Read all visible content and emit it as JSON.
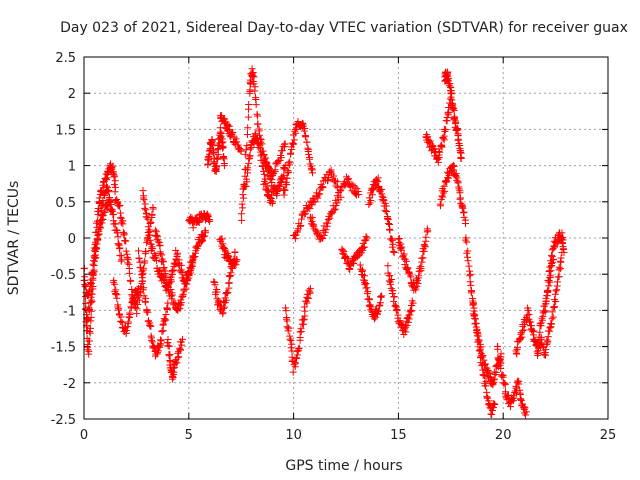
{
  "chart_data": {
    "type": "scatter",
    "title": "Day 023 of 2021, Sidereal Day-to-day VTEC variation (SDTVAR) for receiver guax",
    "xlabel": "GPS time / hours",
    "ylabel": "SDTVAR / TECUs",
    "xlim": [
      0,
      25
    ],
    "ylim": [
      -2.5,
      2.5
    ],
    "x_ticks": [
      0,
      5,
      10,
      15,
      20,
      25
    ],
    "x_tick_labels": [
      "0",
      "5",
      "10",
      "15",
      "20",
      "25"
    ],
    "y_ticks": [
      -2.5,
      -2,
      -1.5,
      -1,
      -0.5,
      0,
      0.5,
      1,
      1.5,
      2,
      2.5
    ],
    "y_tick_labels": [
      "-2.5",
      "-2",
      "-1.5",
      "-1",
      "-0.5",
      "0",
      "0.5",
      "1",
      "1.5",
      "2",
      "2.5"
    ],
    "grid": true,
    "marker": "+",
    "series": [
      {
        "name": "SDTVAR",
        "color": "#ff0000",
        "tracks": [
          {
            "x": [
              0.0,
              0.1,
              0.2,
              0.35,
              0.5,
              0.65,
              0.8,
              1.0,
              1.2,
              1.35,
              1.5
            ],
            "y": [
              -0.4,
              -1.1,
              -1.6,
              -1.0,
              -0.2,
              0.3,
              0.6,
              0.8,
              0.95,
              1.0,
              0.7
            ]
          },
          {
            "x": [
              0.0,
              0.2,
              0.4,
              0.6,
              0.8,
              1.0,
              1.2,
              1.4,
              1.6,
              1.8
            ],
            "y": [
              -0.6,
              -0.8,
              -0.5,
              -0.1,
              0.2,
              0.4,
              0.5,
              0.3,
              0.0,
              -0.3
            ]
          },
          {
            "x": [
              0.1,
              0.3,
              0.5,
              0.7,
              0.9,
              1.1,
              1.3
            ],
            "y": [
              -1.2,
              -0.9,
              -0.4,
              0.1,
              0.5,
              0.7,
              0.4
            ]
          },
          {
            "x": [
              1.5,
              1.7,
              1.9,
              2.1,
              2.3,
              2.5,
              2.7,
              2.9,
              3.1,
              3.3
            ],
            "y": [
              0.6,
              0.4,
              0.1,
              -0.3,
              -0.8,
              -1.0,
              -0.7,
              -0.3,
              0.1,
              0.4
            ]
          },
          {
            "x": [
              1.4,
              1.6,
              1.8,
              2.0,
              2.2,
              2.4,
              2.6
            ],
            "y": [
              -0.6,
              -0.9,
              -1.2,
              -1.3,
              -1.0,
              -0.8,
              -0.7
            ]
          },
          {
            "x": [
              2.6,
              2.8,
              3.0,
              3.2,
              3.4,
              3.6,
              3.8,
              4.0
            ],
            "y": [
              -0.2,
              -0.6,
              -1.0,
              -1.3,
              -1.6,
              -1.5,
              -1.2,
              -0.9
            ]
          },
          {
            "x": [
              2.8,
              3.0,
              3.2,
              3.4,
              3.6,
              3.8,
              4.0,
              4.2,
              4.4
            ],
            "y": [
              0.6,
              0.3,
              -0.1,
              -0.3,
              -0.5,
              -0.6,
              -0.7,
              -0.5,
              -0.3
            ]
          },
          {
            "x": [
              3.4,
              3.6,
              3.8,
              4.0,
              4.2,
              4.4,
              4.6,
              4.8,
              5.0,
              5.2
            ],
            "y": [
              0.1,
              -0.1,
              -0.4,
              -0.7,
              -0.8,
              -1.0,
              -0.9,
              -0.7,
              -0.5,
              -0.3
            ]
          },
          {
            "x": [
              4.0,
              4.1,
              4.2,
              4.3,
              4.5,
              4.7
            ],
            "y": [
              -1.4,
              -1.7,
              -1.9,
              -1.8,
              -1.6,
              -1.4
            ]
          },
          {
            "x": [
              4.4,
              4.6,
              4.8,
              5.0,
              5.2,
              5.4,
              5.6,
              5.8
            ],
            "y": [
              -0.2,
              -0.4,
              -0.6,
              -0.5,
              -0.3,
              -0.1,
              0.0,
              0.1
            ]
          },
          {
            "x": [
              5.0,
              5.2,
              5.4,
              5.6,
              5.8,
              6.0
            ],
            "y": [
              0.3,
              0.2,
              0.25,
              0.3,
              0.3,
              0.25
            ]
          },
          {
            "x": [
              5.9,
              6.0,
              6.1,
              6.2,
              6.3,
              6.4,
              6.5,
              6.6,
              6.7
            ],
            "y": [
              1.0,
              1.2,
              1.4,
              1.1,
              0.9,
              1.2,
              1.5,
              1.3,
              1.0
            ]
          },
          {
            "x": [
              6.2,
              6.4,
              6.6,
              6.8,
              7.0,
              7.2
            ],
            "y": [
              -0.6,
              -0.9,
              -1.0,
              -0.8,
              -0.5,
              -0.2
            ]
          },
          {
            "x": [
              6.5,
              6.7,
              6.9,
              7.1,
              7.3,
              7.5
            ],
            "y": [
              1.7,
              1.6,
              1.5,
              1.4,
              1.3,
              1.2
            ]
          },
          {
            "x": [
              6.5,
              6.7,
              6.9,
              7.1,
              7.3
            ],
            "y": [
              0.0,
              -0.2,
              -0.3,
              -0.4,
              -0.3
            ]
          },
          {
            "x": [
              7.5,
              7.7,
              7.9,
              8.0,
              8.1,
              8.3,
              8.5,
              8.7,
              9.0,
              9.3,
              9.6
            ],
            "y": [
              0.2,
              1.0,
              2.0,
              2.3,
              2.2,
              1.6,
              1.2,
              1.0,
              0.9,
              1.1,
              1.3
            ]
          },
          {
            "x": [
              7.6,
              7.8,
              8.0,
              8.2,
              8.4,
              8.6,
              8.8,
              9.0
            ],
            "y": [
              0.6,
              0.9,
              1.3,
              1.4,
              1.2,
              0.8,
              0.6,
              0.5
            ]
          },
          {
            "x": [
              8.6,
              8.8,
              9.0,
              9.2,
              9.4,
              9.6
            ],
            "y": [
              1.1,
              0.9,
              0.7,
              0.6,
              0.8,
              1.0
            ]
          },
          {
            "x": [
              9.6,
              9.8,
              10.0,
              10.2,
              10.4,
              10.6,
              10.8
            ],
            "y": [
              -1.0,
              -1.3,
              -1.8,
              -1.6,
              -1.2,
              -0.9,
              -0.7
            ]
          },
          {
            "x": [
              9.5,
              9.7,
              9.9,
              10.1,
              10.3,
              10.5,
              10.7,
              10.9
            ],
            "y": [
              0.6,
              0.8,
              1.2,
              1.5,
              1.6,
              1.5,
              1.2,
              0.9
            ]
          },
          {
            "x": [
              10.0,
              10.3,
              10.6,
              10.9,
              11.2,
              11.5,
              11.8,
              12.1
            ],
            "y": [
              0.0,
              0.2,
              0.4,
              0.5,
              0.6,
              0.8,
              0.9,
              0.7
            ]
          },
          {
            "x": [
              10.8,
              11.0,
              11.3,
              11.6,
              11.9,
              12.2,
              12.5,
              12.8,
              13.1
            ],
            "y": [
              0.3,
              0.1,
              0.0,
              0.2,
              0.4,
              0.6,
              0.8,
              0.7,
              0.6
            ]
          },
          {
            "x": [
              12.3,
              12.5,
              12.7,
              12.9,
              13.1,
              13.3,
              13.5
            ],
            "y": [
              -0.2,
              -0.3,
              -0.4,
              -0.3,
              -0.2,
              -0.1,
              0.0
            ]
          },
          {
            "x": [
              13.2,
              13.4,
              13.6,
              13.8,
              14.0,
              14.2
            ],
            "y": [
              -0.4,
              -0.6,
              -0.9,
              -1.1,
              -1.0,
              -0.8
            ]
          },
          {
            "x": [
              13.6,
              13.8,
              14.0,
              14.2,
              14.4,
              14.6,
              14.8
            ],
            "y": [
              0.5,
              0.7,
              0.8,
              0.6,
              0.4,
              0.1,
              -0.2
            ]
          },
          {
            "x": [
              14.5,
              14.7,
              14.9,
              15.1,
              15.3,
              15.5,
              15.7
            ],
            "y": [
              -0.4,
              -0.7,
              -1.0,
              -1.2,
              -1.3,
              -1.1,
              -0.9
            ]
          },
          {
            "x": [
              15.0,
              15.2,
              15.4,
              15.6,
              15.8,
              16.0,
              16.2,
              16.4
            ],
            "y": [
              0.0,
              -0.2,
              -0.4,
              -0.6,
              -0.7,
              -0.5,
              -0.2,
              0.1
            ]
          },
          {
            "x": [
              16.3,
              16.5,
              16.7,
              16.9,
              17.1,
              17.3,
              17.5
            ],
            "y": [
              1.4,
              1.3,
              1.2,
              1.1,
              1.3,
              1.6,
              2.0
            ]
          },
          {
            "x": [
              17.2,
              17.3,
              17.4,
              17.5,
              17.6,
              17.7,
              17.8,
              17.9,
              18.0
            ],
            "y": [
              2.2,
              2.25,
              2.2,
              2.0,
              1.8,
              1.6,
              1.5,
              1.3,
              1.1
            ]
          },
          {
            "x": [
              17.0,
              17.2,
              17.4,
              17.6,
              17.8,
              18.0,
              18.2
            ],
            "y": [
              0.5,
              0.7,
              0.9,
              1.0,
              0.8,
              0.5,
              0.2
            ]
          },
          {
            "x": [
              18.2,
              18.4,
              18.6,
              18.8,
              19.0,
              19.2,
              19.4,
              19.6
            ],
            "y": [
              0.0,
              -0.5,
              -1.0,
              -1.4,
              -1.8,
              -2.1,
              -2.4,
              -2.3
            ]
          },
          {
            "x": [
              18.5,
              18.7,
              18.9,
              19.1,
              19.3,
              19.5,
              19.7,
              19.9
            ],
            "y": [
              -0.8,
              -1.2,
              -1.5,
              -1.7,
              -1.9,
              -2.0,
              -1.8,
              -1.6
            ]
          },
          {
            "x": [
              19.7,
              19.9,
              20.1,
              20.3,
              20.5,
              20.7,
              20.9,
              21.1
            ],
            "y": [
              -1.5,
              -1.8,
              -2.1,
              -2.3,
              -2.2,
              -2.0,
              -2.3,
              -2.4
            ]
          },
          {
            "x": [
              20.6,
              20.8,
              21.0,
              21.2,
              21.4,
              21.6,
              21.8,
              22.0,
              22.2,
              22.4
            ],
            "y": [
              -1.6,
              -1.4,
              -1.2,
              -1.0,
              -1.3,
              -1.5,
              -1.2,
              -0.9,
              -0.6,
              -0.3
            ]
          },
          {
            "x": [
              21.6,
              21.8,
              22.0,
              22.2,
              22.4,
              22.6,
              22.8
            ],
            "y": [
              -1.6,
              -1.4,
              -1.6,
              -1.3,
              -1.0,
              -0.6,
              -0.2
            ]
          },
          {
            "x": [
              22.0,
              22.2,
              22.4,
              22.6,
              22.8,
              22.9
            ],
            "y": [
              -1.0,
              -0.5,
              -0.1,
              0.0,
              0.05,
              -0.2
            ]
          }
        ]
      }
    ]
  }
}
